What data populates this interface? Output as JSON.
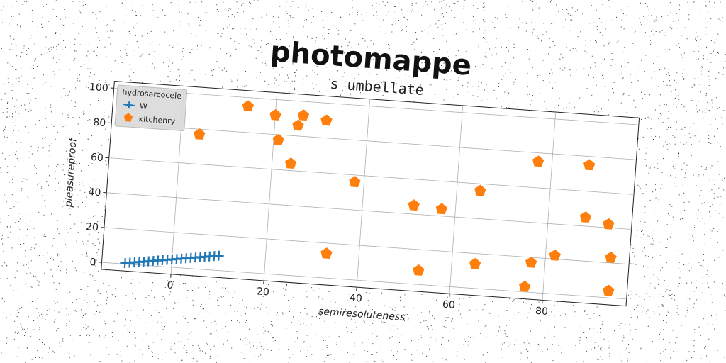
{
  "chart_data": {
    "type": "scatter",
    "suptitle": "photomappe",
    "title": "s umbellate",
    "xlabel": "semiresoluteness",
    "ylabel": "pleasureproof",
    "xlim": [
      -15,
      98
    ],
    "ylim": [
      -4,
      104
    ],
    "xticks": [
      0,
      20,
      40,
      60,
      80
    ],
    "yticks": [
      0,
      20,
      40,
      60,
      80,
      100
    ],
    "grid": true,
    "legend_title": "hydrosarcocele",
    "legend_position": "top-left",
    "series": [
      {
        "name": "W",
        "color": "#1f77b4",
        "marker": "plus-line",
        "x": [
          -10,
          -9,
          -8,
          -7,
          -6,
          -5,
          -4,
          -3,
          -2,
          -1,
          0,
          1,
          2,
          3,
          4,
          5,
          6,
          7,
          8,
          9,
          10
        ],
        "y": [
          0.5,
          0.9,
          1.3,
          1.7,
          2.1,
          2.5,
          2.9,
          3.3,
          3.7,
          4.1,
          4.5,
          4.9,
          5.3,
          5.7,
          6.1,
          6.5,
          6.9,
          7.3,
          7.7,
          8.1,
          8.5
        ]
      },
      {
        "name": "kitchenry",
        "color": "#ff7f0e",
        "marker": "pentagon",
        "x": [
          4,
          14,
          20,
          21,
          24,
          25,
          26,
          31,
          33,
          38,
          51,
          53,
          57,
          65,
          65,
          76,
          77,
          77,
          82,
          88,
          88,
          93,
          94,
          94
        ],
        "y": [
          77,
          95,
          91,
          77,
          64,
          86,
          92,
          90,
          14,
          56,
          45,
          8,
          44,
          14,
          56,
          3,
          17,
          75,
          22,
          75,
          45,
          42,
          4,
          23
        ]
      }
    ]
  }
}
